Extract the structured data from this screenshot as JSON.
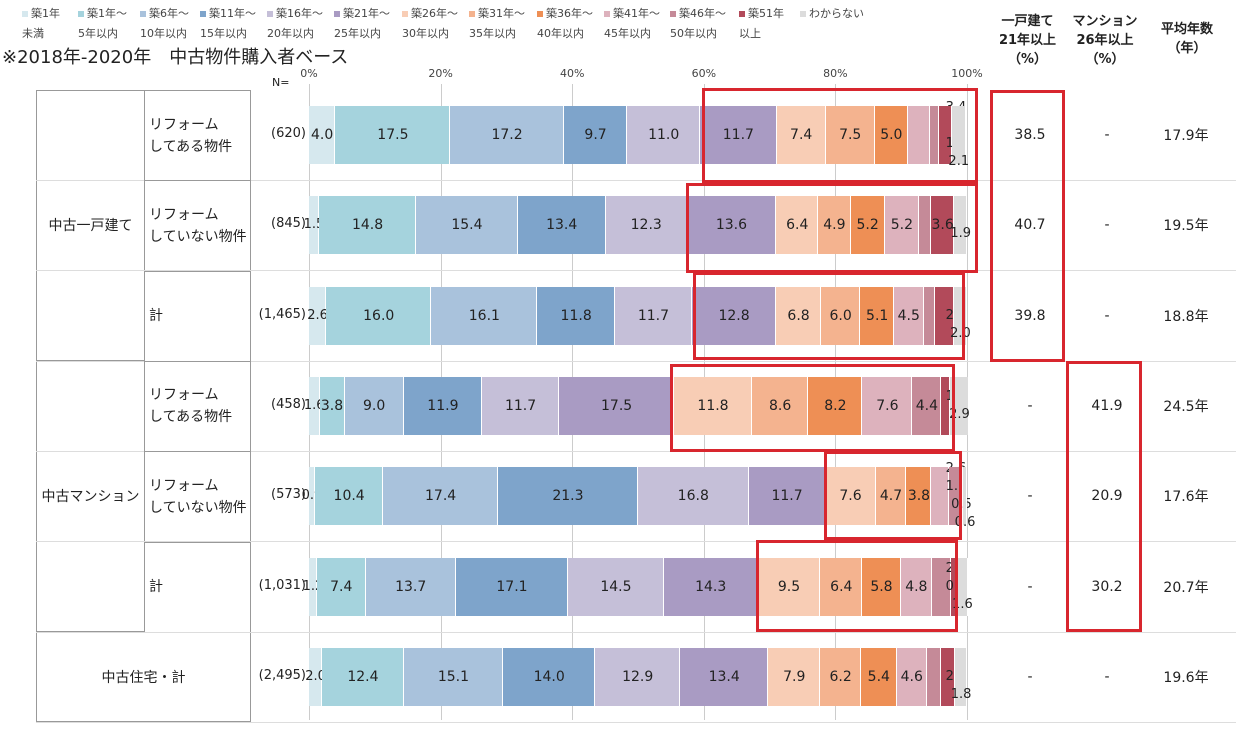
{
  "chart_data": {
    "type": "bar",
    "orientation": "horizontal",
    "stacked": true,
    "title": "※2018年-2020年　中古物件購入者ベース",
    "n_label": "N=",
    "xlim": [
      0,
      100
    ],
    "x_ticks": [
      "0%",
      "20%",
      "40%",
      "60%",
      "80%",
      "100%"
    ],
    "legend": [
      {
        "name": "築1年未満",
        "line1": "築1年",
        "line2": "未満",
        "color": "#d6e8ee"
      },
      {
        "name": "築1年～5年以内",
        "line1": "築1年～",
        "line2": "5年以内",
        "color": "#a5d3dd"
      },
      {
        "name": "築6年～10年以内",
        "line1": "築6年～",
        "line2": "10年以内",
        "color": "#a9c2dc"
      },
      {
        "name": "築11年～15年以内",
        "line1": "築11年～",
        "line2": "15年以内",
        "color": "#7ea4cb"
      },
      {
        "name": "築16年～20年以内",
        "line1": "築16年～",
        "line2": "20年以内",
        "color": "#c5bfd8"
      },
      {
        "name": "築21年～25年以内",
        "line1": "築21年～",
        "line2": "25年以内",
        "color": "#a99bc3"
      },
      {
        "name": "築26年～30年以内",
        "line1": "築26年～",
        "line2": "30年以内",
        "color": "#f8cdb5"
      },
      {
        "name": "築31年～35年以内",
        "line1": "築31年～",
        "line2": "35年以内",
        "color": "#f4b38f"
      },
      {
        "name": "築36年～40年以内",
        "line1": "築36年～",
        "line2": "40年以内",
        "color": "#ee8f55"
      },
      {
        "name": "築41年～45年以内",
        "line1": "築41年～",
        "line2": "45年以内",
        "color": "#ddb2bd"
      },
      {
        "name": "築46年～50年以内",
        "line1": "築46年～",
        "line2": "50年以内",
        "color": "#c58a98"
      },
      {
        "name": "築51年以上",
        "line1": "築51年",
        "line2": "以上",
        "color": "#b24a5a"
      },
      {
        "name": "わからない",
        "line1": "わからない",
        "line2": "",
        "color": "#dcdcdc"
      }
    ],
    "columns": {
      "house": "一戸建て\n21年以上\n（%）",
      "mansion": "マンション\n26年以上\n（%）",
      "avg": "平均年数\n（年）"
    },
    "groups": [
      {
        "label": "中古一戸建て"
      },
      {
        "label": "中古マンション"
      },
      {
        "label": "中古住宅・計"
      }
    ],
    "rows": [
      {
        "group": 0,
        "label": "リフォーム\nしてある物件",
        "n": "(620)",
        "values": [
          4.0,
          17.5,
          17.2,
          9.7,
          11.0,
          11.7,
          7.4,
          7.5,
          5.0,
          3.4,
          1.4,
          1.9,
          2.1
        ],
        "house": "38.5",
        "mansion": "-",
        "avg": "17.9年"
      },
      {
        "group": 0,
        "label": "リフォーム\nしていない物件",
        "n": "(845)",
        "values": [
          1.5,
          14.8,
          15.4,
          13.4,
          12.3,
          13.6,
          6.4,
          4.9,
          5.2,
          5.2,
          1.8,
          3.6,
          1.9
        ],
        "house": "40.7",
        "mansion": "-",
        "avg": "19.5年"
      },
      {
        "group": 0,
        "label": "計",
        "n": "(1,465)",
        "values": [
          2.6,
          16.0,
          16.1,
          11.8,
          11.7,
          12.8,
          6.8,
          6.0,
          5.1,
          4.5,
          1.7,
          2.9,
          2.0
        ],
        "house": "39.8",
        "mansion": "-",
        "avg": "18.8年"
      },
      {
        "group": 1,
        "label": "リフォーム\nしてある物件",
        "n": "(458)",
        "values": [
          1.6,
          3.8,
          9.0,
          11.9,
          11.7,
          17.5,
          11.8,
          8.6,
          8.2,
          7.6,
          4.4,
          1.3,
          2.9
        ],
        "house": "-",
        "mansion": "41.9",
        "avg": "24.5年"
      },
      {
        "group": 1,
        "label": "リフォーム\nしていない物件",
        "n": "(573)",
        "values": [
          0.9,
          10.4,
          17.4,
          21.3,
          16.8,
          11.7,
          7.6,
          4.7,
          3.8,
          2.6,
          1.7,
          0.5,
          0.6
        ],
        "house": "-",
        "mansion": "20.9",
        "avg": "17.6年"
      },
      {
        "group": 1,
        "label": "計",
        "n": "(1,031)",
        "values": [
          1.2,
          7.4,
          13.7,
          17.1,
          14.5,
          14.3,
          9.5,
          6.4,
          5.8,
          4.8,
          2.9,
          0.9,
          1.6
        ],
        "house": "-",
        "mansion": "30.2",
        "avg": "20.7年"
      },
      {
        "group": 2,
        "label": "",
        "n": "(2,495)",
        "values": [
          2.0,
          12.4,
          15.1,
          14.0,
          12.9,
          13.4,
          7.9,
          6.2,
          5.4,
          4.6,
          2.2,
          2.1,
          1.8
        ],
        "house": "-",
        "mansion": "-",
        "avg": "19.6年"
      }
    ],
    "highlight_color": "#d8262e"
  }
}
